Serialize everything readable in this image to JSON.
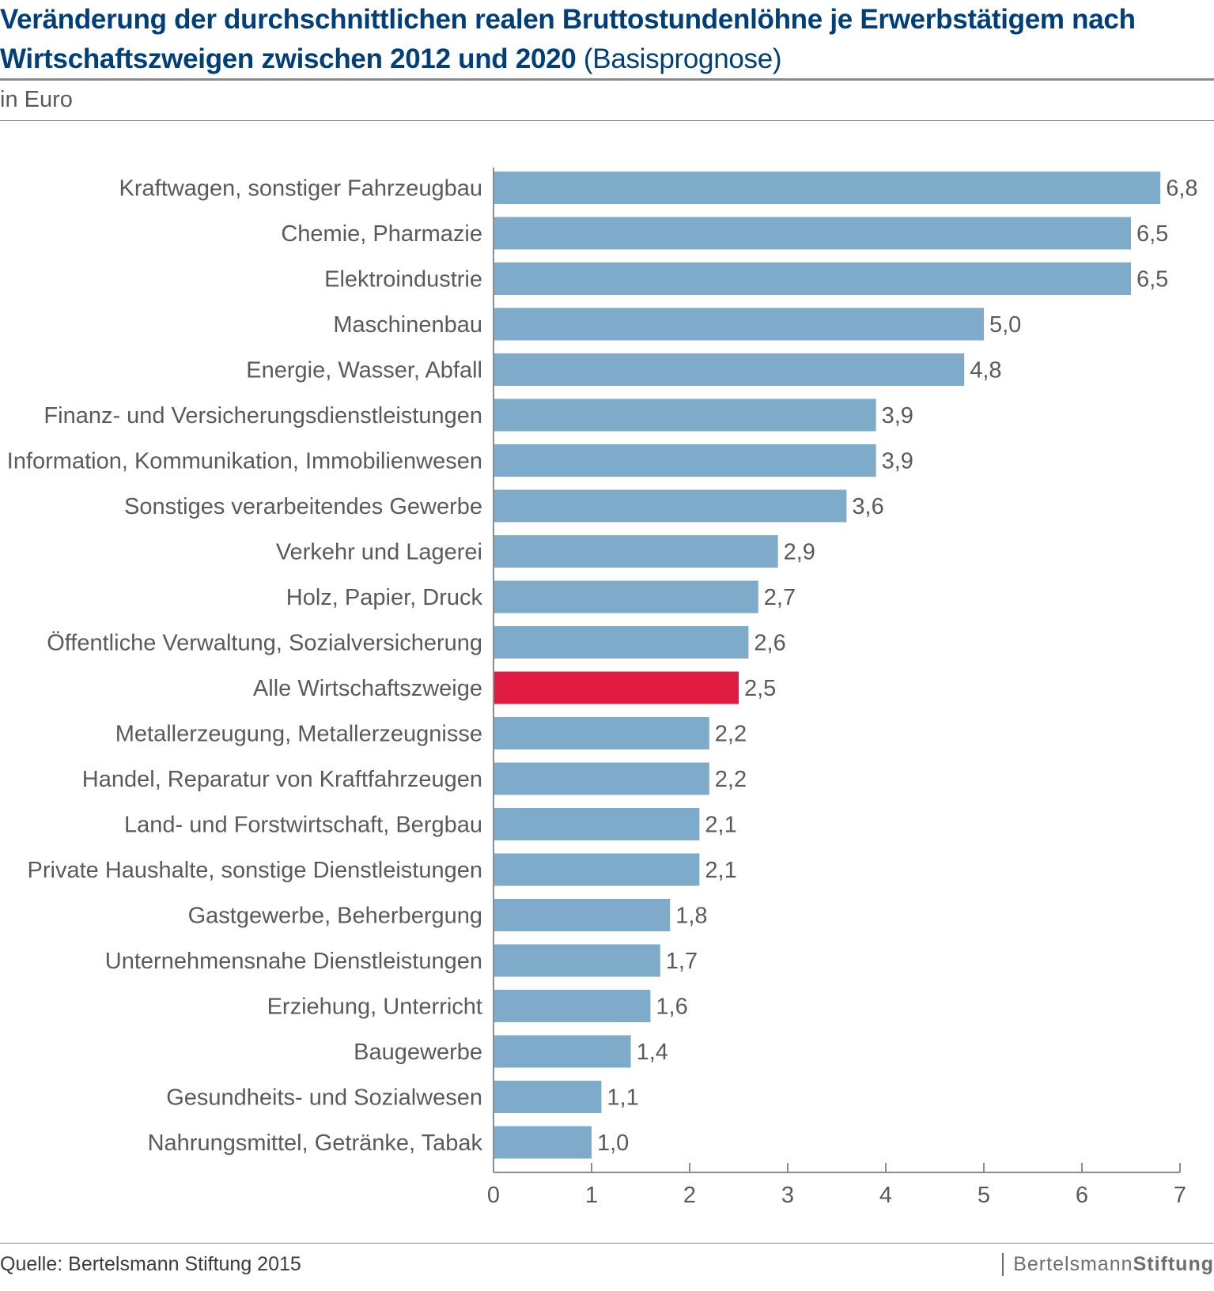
{
  "header": {
    "title_main": "Veränderung der durchschnittlichen realen Bruttostundenlöhne je Erwerbstätigem nach Wirtschaftszweigen zwischen 2012 und 2020",
    "title_suffix": "(Basisprognose)",
    "unit": "in Euro"
  },
  "footer": {
    "source": "Quelle: Bertelsmann Stiftung 2015",
    "brand_light": "Bertelsmann",
    "brand_bold": "Stiftung"
  },
  "colors": {
    "bar": "#7eabc9",
    "highlight": "#e01b41",
    "title": "#003f7a",
    "axis": "#8c8c8c"
  },
  "chart_data": {
    "type": "bar",
    "orientation": "horizontal",
    "title": "Veränderung der durchschnittlichen realen Bruttostundenlöhne je Erwerbstätigem nach Wirtschaftszweigen zwischen 2012 und 2020 (Basisprognose)",
    "ylabel": "in Euro",
    "xlim": [
      0,
      7
    ],
    "xticks": [
      0,
      1,
      2,
      3,
      4,
      5,
      6,
      7
    ],
    "grid": false,
    "categories": [
      "Kraftwagen, sonstiger Fahrzeugbau",
      "Chemie, Pharmazie",
      "Elektroindustrie",
      "Maschinenbau",
      "Energie, Wasser, Abfall",
      "Finanz- und Versicherungsdienstleistungen",
      "Information, Kommunikation, Immobilienwesen",
      "Sonstiges verarbeitendes Gewerbe",
      "Verkehr und Lagerei",
      "Holz, Papier, Druck",
      "Öffentliche Verwaltung, Sozialversicherung",
      "Alle Wirtschaftszweige",
      "Metallerzeugung, Metallerzeugnisse",
      "Handel, Reparatur von Kraftfahrzeugen",
      "Land- und Forstwirtschaft, Bergbau",
      "Private Haushalte, sonstige Dienstleistungen",
      "Gastgewerbe, Beherbergung",
      "Unternehmensnahe Dienstleistungen",
      "Erziehung, Unterricht",
      "Baugewerbe",
      "Gesundheits- und Sozialwesen",
      "Nahrungsmittel, Getränke, Tabak"
    ],
    "values": [
      6.8,
      6.5,
      6.5,
      5.0,
      4.8,
      3.9,
      3.9,
      3.6,
      2.9,
      2.7,
      2.6,
      2.5,
      2.2,
      2.2,
      2.1,
      2.1,
      1.8,
      1.7,
      1.6,
      1.4,
      1.1,
      1.0
    ],
    "value_labels": [
      "6,8",
      "6,5",
      "6,5",
      "5,0",
      "4,8",
      "3,9",
      "3,9",
      "3,6",
      "2,9",
      "2,7",
      "2,6",
      "2,5",
      "2,2",
      "2,2",
      "2,1",
      "2,1",
      "1,8",
      "1,7",
      "1,6",
      "1,4",
      "1,1",
      "1,0"
    ],
    "highlight_category": "Alle Wirtschaftszweige"
  }
}
